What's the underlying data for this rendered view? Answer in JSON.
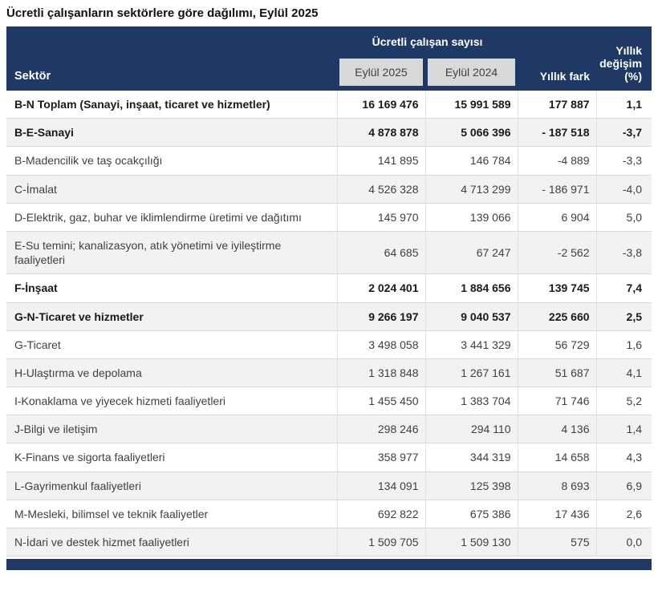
{
  "title": "Ücretli çalışanların sektörlere göre dağılımı, Eylül 2025",
  "header": {
    "sector_label": "Sektör",
    "group_label": "Ücretli çalışan sayısı",
    "sub_col_1": "Eylül 2025",
    "sub_col_2": "Eylül 2024",
    "diff_label": "Yıllık fark",
    "pct_label": "Yıllık değişim (%)"
  },
  "colors": {
    "header_bg": "#1f3864",
    "subheader_chip_bg": "#d9d9d9",
    "alt_row_bg": "#f2f2f2",
    "footer_bar_bg": "#1f3864",
    "border": "#d9d9d9"
  },
  "chart_data": {
    "type": "table",
    "title": "Ücretli çalışanların sektörlere göre dağılımı, Eylül 2025",
    "columns": [
      "Sektör",
      "Eylül 2025",
      "Eylül 2024",
      "Yıllık fark",
      "Yıllık değişim (%)"
    ],
    "rows": [
      {
        "sector": "B-N Toplam (Sanayi, inşaat, ticaret ve hizmetler)",
        "eylul_2025": "16 169 476",
        "eylul_2024": "15 991 589",
        "yillik_fark": "177 887",
        "yillik_degisim": "1,1",
        "bold": true
      },
      {
        "sector": "B-E-Sanayi",
        "eylul_2025": "4 878 878",
        "eylul_2024": "5 066 396",
        "yillik_fark": "- 187 518",
        "yillik_degisim": "-3,7",
        "bold": true
      },
      {
        "sector": "B-Madencilik ve taş ocakçılığı",
        "eylul_2025": "141 895",
        "eylul_2024": "146 784",
        "yillik_fark": "-4 889",
        "yillik_degisim": "-3,3",
        "bold": false
      },
      {
        "sector": "C-İmalat",
        "eylul_2025": "4 526 328",
        "eylul_2024": "4 713 299",
        "yillik_fark": "- 186 971",
        "yillik_degisim": "-4,0",
        "bold": false
      },
      {
        "sector": "D-Elektrik, gaz, buhar ve iklimlendirme üretimi ve dağıtımı",
        "eylul_2025": "145 970",
        "eylul_2024": "139 066",
        "yillik_fark": "6 904",
        "yillik_degisim": "5,0",
        "bold": false
      },
      {
        "sector": "E-Su temini; kanalizasyon, atık yönetimi ve iyileştirme faaliyetleri",
        "eylul_2025": "64 685",
        "eylul_2024": "67 247",
        "yillik_fark": "-2 562",
        "yillik_degisim": "-3,8",
        "bold": false
      },
      {
        "sector": "F-İnşaat",
        "eylul_2025": "2 024 401",
        "eylul_2024": "1 884 656",
        "yillik_fark": "139 745",
        "yillik_degisim": "7,4",
        "bold": true
      },
      {
        "sector": "G-N-Ticaret ve hizmetler",
        "eylul_2025": "9 266 197",
        "eylul_2024": "9 040 537",
        "yillik_fark": "225 660",
        "yillik_degisim": "2,5",
        "bold": true
      },
      {
        "sector": "G-Ticaret",
        "eylul_2025": "3 498 058",
        "eylul_2024": "3 441 329",
        "yillik_fark": "56 729",
        "yillik_degisim": "1,6",
        "bold": false
      },
      {
        "sector": "H-Ulaştırma ve depolama",
        "eylul_2025": "1 318 848",
        "eylul_2024": "1 267 161",
        "yillik_fark": "51 687",
        "yillik_degisim": "4,1",
        "bold": false
      },
      {
        "sector": "I-Konaklama ve yiyecek hizmeti faaliyetleri",
        "eylul_2025": "1 455 450",
        "eylul_2024": "1 383 704",
        "yillik_fark": "71 746",
        "yillik_degisim": "5,2",
        "bold": false
      },
      {
        "sector": "J-Bilgi ve iletişim",
        "eylul_2025": "298 246",
        "eylul_2024": "294 110",
        "yillik_fark": "4 136",
        "yillik_degisim": "1,4",
        "bold": false
      },
      {
        "sector": "K-Finans ve sigorta faaliyetleri",
        "eylul_2025": "358 977",
        "eylul_2024": "344 319",
        "yillik_fark": "14 658",
        "yillik_degisim": "4,3",
        "bold": false
      },
      {
        "sector": "L-Gayrimenkul faaliyetleri",
        "eylul_2025": "134 091",
        "eylul_2024": "125 398",
        "yillik_fark": "8 693",
        "yillik_degisim": "6,9",
        "bold": false
      },
      {
        "sector": "M-Mesleki, bilimsel ve teknik faaliyetler",
        "eylul_2025": "692 822",
        "eylul_2024": "675 386",
        "yillik_fark": "17 436",
        "yillik_degisim": "2,6",
        "bold": false
      },
      {
        "sector": "N-İdari ve destek hizmet faaliyetleri",
        "eylul_2025": "1 509 705",
        "eylul_2024": "1 509 130",
        "yillik_fark": "575",
        "yillik_degisim": "0,0",
        "bold": false
      }
    ]
  }
}
